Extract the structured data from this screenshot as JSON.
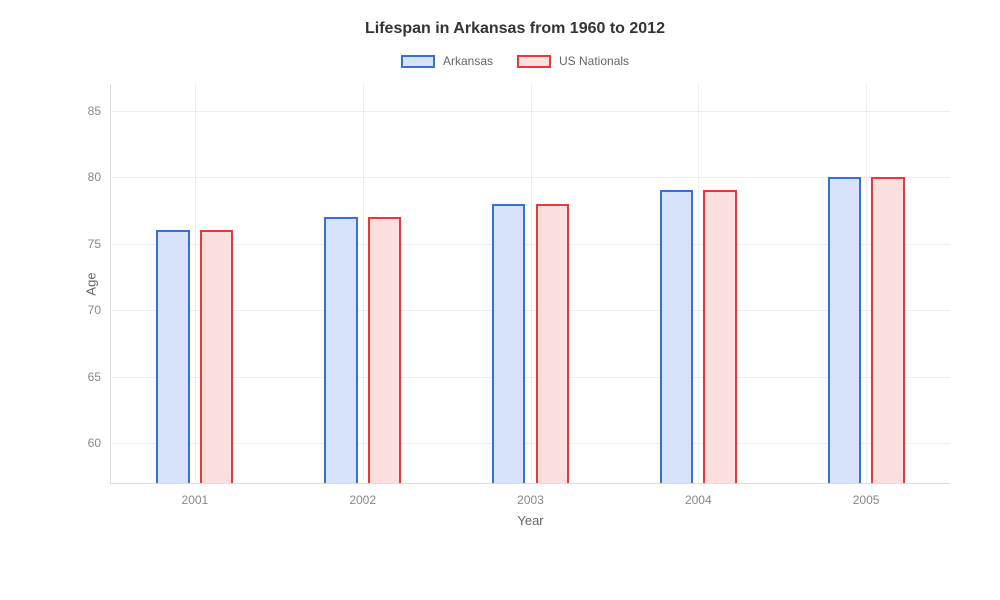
{
  "chart": {
    "type": "bar",
    "title": "Lifespan in Arkansas from 1960 to 2012",
    "title_fontsize": 16,
    "title_color": "#333333",
    "xlabel": "Year",
    "ylabel": "Age",
    "label_fontsize": 13,
    "label_color": "#666666",
    "tick_fontsize": 12,
    "tick_color": "#888888",
    "background_color": "#ffffff",
    "grid_color": "#eeeeee",
    "axis_color": "#dddddd",
    "ylim": [
      57,
      87
    ],
    "yticks": [
      60,
      65,
      70,
      75,
      80,
      85
    ],
    "categories": [
      "2001",
      "2002",
      "2003",
      "2004",
      "2005"
    ],
    "series": [
      {
        "name": "Arkansas",
        "stroke": "#3b6fd6",
        "fill": "#d7e3fa",
        "values": [
          76,
          77,
          78,
          79,
          80
        ]
      },
      {
        "name": "US Nationals",
        "stroke": "#e33b3b",
        "fill": "#fbdede",
        "values": [
          76,
          77,
          78,
          79,
          80
        ]
      }
    ],
    "bar_width_pct": 4.0,
    "bar_gap_pct": 1.2
  }
}
